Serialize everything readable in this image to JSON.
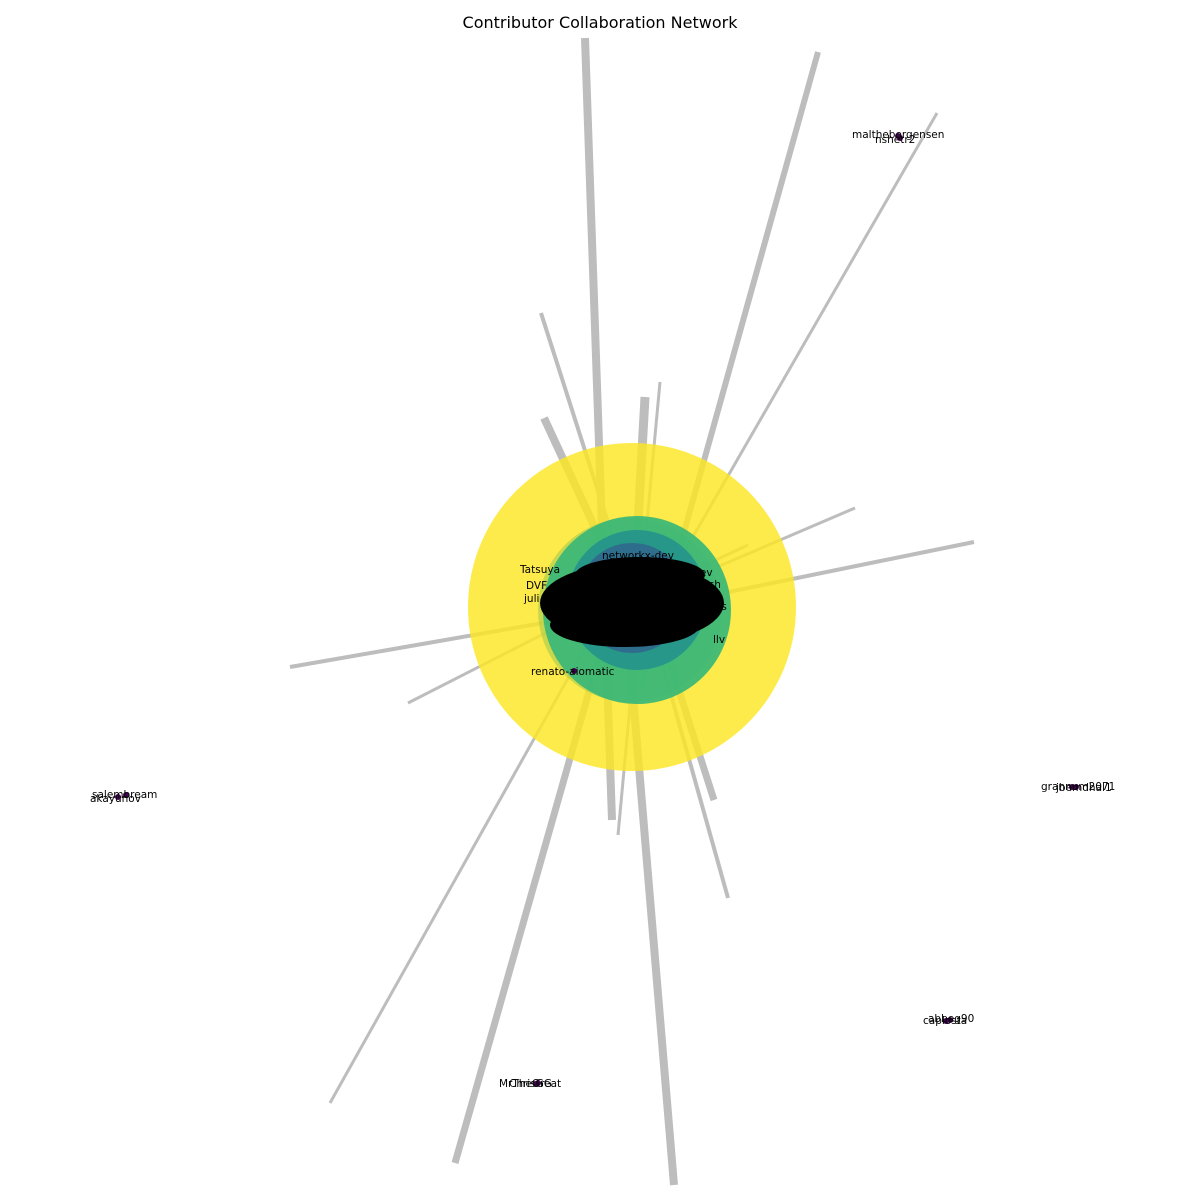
{
  "diagram": {
    "title": "Contributor Collaboration Network",
    "edge_color": "#bdbdbd",
    "hub_ring_colors": [
      "#fde725",
      "#35b779",
      "#31688e",
      "#443983"
    ],
    "node_color_small": "#440154",
    "visible_labels": [
      "networkx-dev",
      "Tatsuya",
      "DVF",
      "juli",
      "renato-aiomatic",
      "maltheborgensen",
      "nshetr2",
      "salembream",
      "akayunov",
      "grannum2071",
      "jbemdhal1",
      "abbeg90",
      "caplosta",
      "MrTheGreat",
      "ChrisGG",
      "ach",
      "lev",
      "ejs",
      "llv"
    ]
  }
}
